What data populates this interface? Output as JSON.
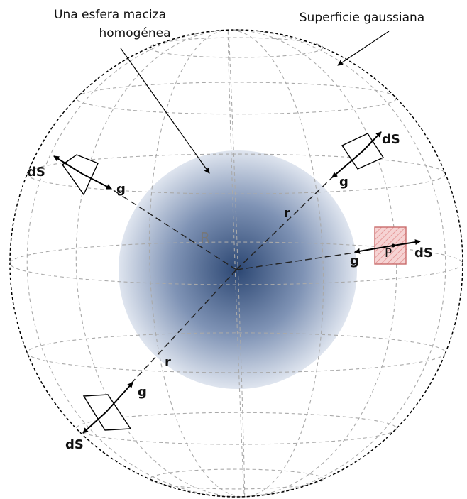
{
  "labels": {
    "solid_sphere": [
      "Una esfera maciza",
      "homogénea"
    ],
    "gaussian_surface": "Superficie gaussiana",
    "radius_R": "R",
    "point_P": "P",
    "r_upper": "r",
    "r_lower": "r",
    "vectors": [
      {
        "dS": "dS",
        "g": "g"
      },
      {
        "dS": "dS",
        "g": "g"
      },
      {
        "dS": "dS",
        "g": "g"
      },
      {
        "dS": "dS",
        "g": "g"
      }
    ]
  }
}
